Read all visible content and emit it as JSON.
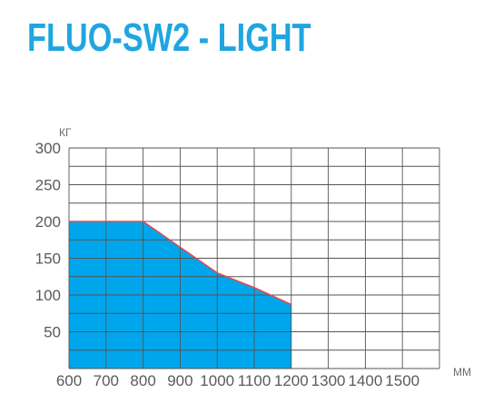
{
  "title": "FLUO-SW2 - LIGHT",
  "chart_data": {
    "type": "area",
    "x": [
      600,
      800,
      900,
      1000,
      1100,
      1200
    ],
    "y": [
      200,
      200,
      165,
      130,
      110,
      87
    ],
    "xlabel": "MM",
    "ylabel": "КГ",
    "xlim": [
      600,
      1600
    ],
    "ylim": [
      0,
      300
    ],
    "x_ticks": [
      "600",
      "700",
      "800",
      "900",
      "1000",
      "1100",
      "1200",
      "1300",
      "1400",
      "1500"
    ],
    "y_ticks": [
      "300",
      "250",
      "200",
      "150",
      "100",
      "50"
    ],
    "grid": true,
    "fill_color": "#00a6ec",
    "line_color": "#e8474f",
    "grid_color": "#555555"
  }
}
